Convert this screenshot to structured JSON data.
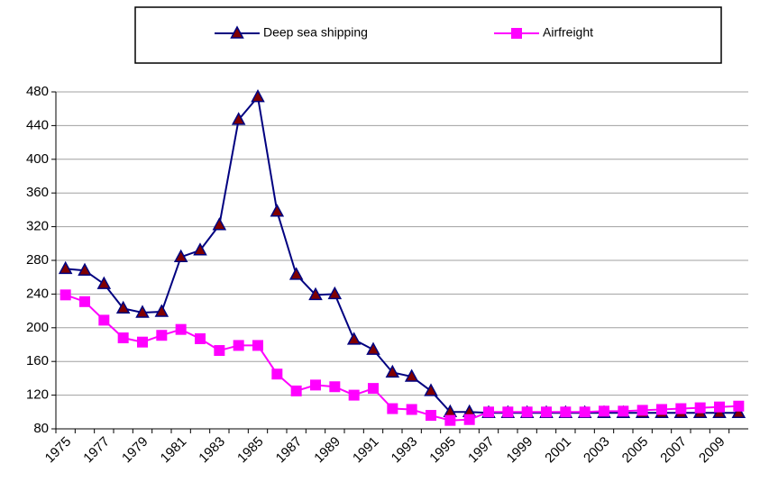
{
  "chart_data": {
    "type": "line",
    "categories": [
      "1975",
      null,
      "1977",
      null,
      "1979",
      null,
      "1981",
      null,
      "1983",
      null,
      "1985",
      null,
      "1987",
      null,
      "1989",
      null,
      "1991",
      null,
      "1993",
      null,
      "1995",
      null,
      "1997",
      null,
      "1999",
      null,
      "2001",
      null,
      "2003",
      null,
      "2005",
      null,
      "2007",
      null,
      "2009",
      null
    ],
    "series": [
      {
        "name": "Deep sea shipping",
        "color": "#000080",
        "marker": "triangle",
        "marker_color": "#800000",
        "values": [
          270,
          268,
          252,
          223,
          218,
          219,
          284,
          292,
          322,
          447,
          474,
          338,
          263,
          239,
          240,
          186,
          174,
          147,
          142,
          125,
          100,
          100,
          99,
          99,
          99,
          99,
          99,
          99,
          99,
          99,
          99,
          99,
          99,
          99,
          99,
          99
        ]
      },
      {
        "name": "Airfreight",
        "color": "#ff00ff",
        "marker": "square",
        "marker_color": "#ff00ff",
        "values": [
          239,
          231,
          209,
          188,
          183,
          191,
          198,
          187,
          173,
          179,
          179,
          145,
          125,
          132,
          130,
          120,
          128,
          104,
          103,
          96,
          90,
          91,
          100,
          100,
          100,
          100,
          100,
          100,
          101,
          101,
          102,
          103,
          104,
          105,
          106,
          107
        ]
      }
    ],
    "ylim": [
      80,
      480
    ],
    "yticks": [
      80,
      120,
      160,
      200,
      240,
      280,
      320,
      360,
      400,
      440,
      480
    ],
    "grid": true,
    "legend": "top"
  }
}
